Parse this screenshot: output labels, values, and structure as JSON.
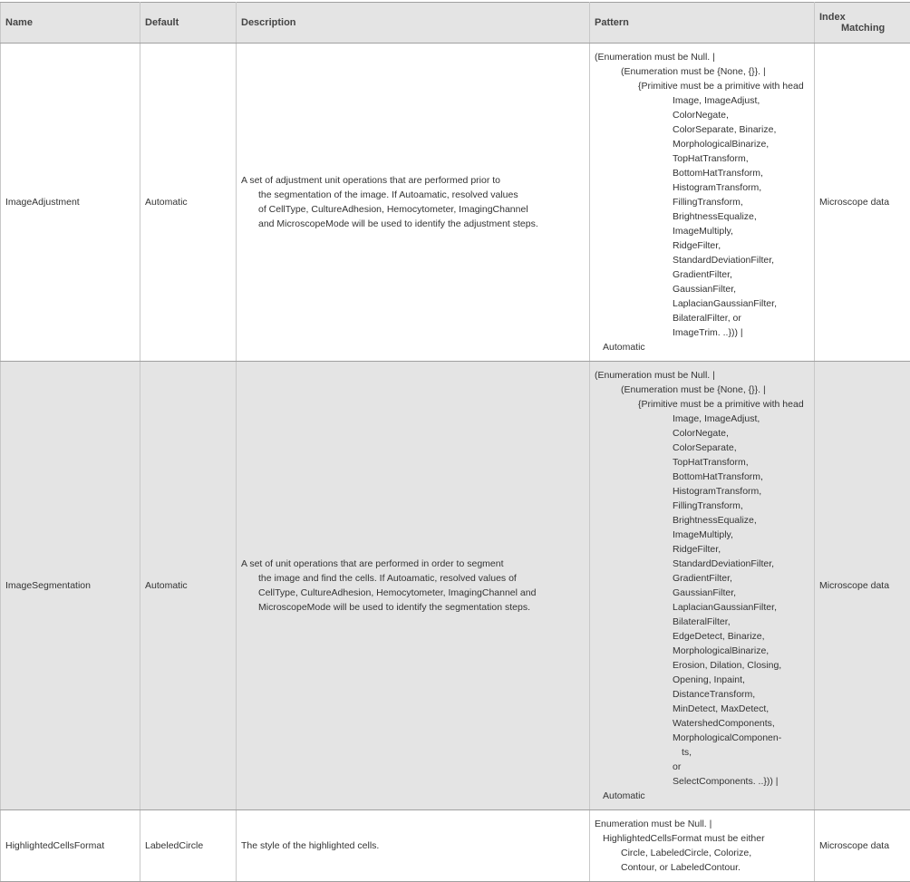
{
  "headers": {
    "name": "Name",
    "default": "Default",
    "description": "Description",
    "pattern": "Pattern",
    "index_matching_1": "Index",
    "index_matching_2": "Matching"
  },
  "rows": [
    {
      "name": "ImageAdjustment",
      "default": "Automatic",
      "description": [
        "A set of adjustment unit operations that are performed prior to",
        "the segmentation of the image.  If Autoamatic, resolved values",
        "of CellType, CultureAdhesion, Hemocytometer, ImagingChannel",
        "and MicroscopeMode will be used to identify the adjustment steps."
      ],
      "pattern": [
        {
          "text": "(Enumeration must be Null. |",
          "level": "0"
        },
        {
          "text": "(Enumeration must be {None, {}}. |",
          "level": "1"
        },
        {
          "text": "{Primitive must be a primitive with head",
          "level": "2"
        },
        {
          "text": "Image, ImageAdjust,",
          "level": "3"
        },
        {
          "text": "ColorNegate,",
          "level": "3"
        },
        {
          "text": "ColorSeparate, Binarize,",
          "level": "3"
        },
        {
          "text": "MorphologicalBinarize,",
          "level": "3"
        },
        {
          "text": "TopHatTransform,",
          "level": "3"
        },
        {
          "text": "BottomHatTransform,",
          "level": "3"
        },
        {
          "text": "HistogramTransform,",
          "level": "3"
        },
        {
          "text": "FillingTransform,",
          "level": "3"
        },
        {
          "text": "BrightnessEqualize,",
          "level": "3"
        },
        {
          "text": "ImageMultiply,",
          "level": "3"
        },
        {
          "text": "RidgeFilter,",
          "level": "3"
        },
        {
          "text": "StandardDeviationFilter,",
          "level": "3"
        },
        {
          "text": "GradientFilter,",
          "level": "3"
        },
        {
          "text": "GaussianFilter,",
          "level": "3"
        },
        {
          "text": "LaplacianGaussianFilter,",
          "level": "3"
        },
        {
          "text": "BilateralFilter, or",
          "level": "3"
        },
        {
          "text": "ImageTrim. ..})) |",
          "level": "3"
        },
        {
          "text": "Automatic",
          "level": "a"
        }
      ],
      "index_matching": "Microscope data"
    },
    {
      "name": "ImageSegmentation",
      "default": "Automatic",
      "description": [
        "A set of unit operations that are performed in order to segment",
        "the image and find the cells.  If Autoamatic, resolved values of",
        "CellType, CultureAdhesion, Hemocytometer, ImagingChannel and",
        "MicroscopeMode will be used to identify the segmentation steps."
      ],
      "pattern": [
        {
          "text": "(Enumeration must be Null. |",
          "level": "0"
        },
        {
          "text": "(Enumeration must be {None, {}}. |",
          "level": "1"
        },
        {
          "text": "{Primitive must be a primitive with head",
          "level": "2"
        },
        {
          "text": "Image, ImageAdjust,",
          "level": "3"
        },
        {
          "text": "ColorNegate,",
          "level": "3"
        },
        {
          "text": "ColorSeparate,",
          "level": "3"
        },
        {
          "text": "TopHatTransform,",
          "level": "3"
        },
        {
          "text": "BottomHatTransform,",
          "level": "3"
        },
        {
          "text": "HistogramTransform,",
          "level": "3"
        },
        {
          "text": "FillingTransform,",
          "level": "3"
        },
        {
          "text": "BrightnessEqualize,",
          "level": "3"
        },
        {
          "text": "ImageMultiply,",
          "level": "3"
        },
        {
          "text": "RidgeFilter,",
          "level": "3"
        },
        {
          "text": "StandardDeviationFilter,",
          "level": "3"
        },
        {
          "text": "GradientFilter,",
          "level": "3"
        },
        {
          "text": "GaussianFilter,",
          "level": "3"
        },
        {
          "text": "LaplacianGaussianFilter,",
          "level": "3"
        },
        {
          "text": "BilateralFilter,",
          "level": "3"
        },
        {
          "text": "EdgeDetect, Binarize,",
          "level": "3"
        },
        {
          "text": "MorphologicalBinarize,",
          "level": "3"
        },
        {
          "text": "Erosion, Dilation, Closing,",
          "level": "3"
        },
        {
          "text": "Opening, Inpaint,",
          "level": "3"
        },
        {
          "text": "DistanceTransform,",
          "level": "3"
        },
        {
          "text": "MinDetect, MaxDetect,",
          "level": "3"
        },
        {
          "text": "WatershedComponents,",
          "level": "3"
        },
        {
          "text": "MorphologicalComponen-",
          "level": "3"
        },
        {
          "text": "ts,",
          "level": "4"
        },
        {
          "text": "or",
          "level": "3"
        },
        {
          "text": "SelectComponents. ..})) |",
          "level": "3"
        },
        {
          "text": "Automatic",
          "level": "a"
        }
      ],
      "index_matching": "Microscope data"
    },
    {
      "name": "HighlightedCellsFormat",
      "default": "LabeledCircle",
      "description": [
        "The style of the highlighted cells."
      ],
      "pattern": [
        {
          "text": "Enumeration must be Null. |",
          "level": "0"
        },
        {
          "text": "HighlightedCellsFormat must be either",
          "level": "a"
        },
        {
          "text": "Circle, LabeledCircle, Colorize,",
          "level": "1"
        },
        {
          "text": "Contour, or LabeledContour.",
          "level": "1"
        }
      ],
      "index_matching": "Microscope data"
    }
  ]
}
